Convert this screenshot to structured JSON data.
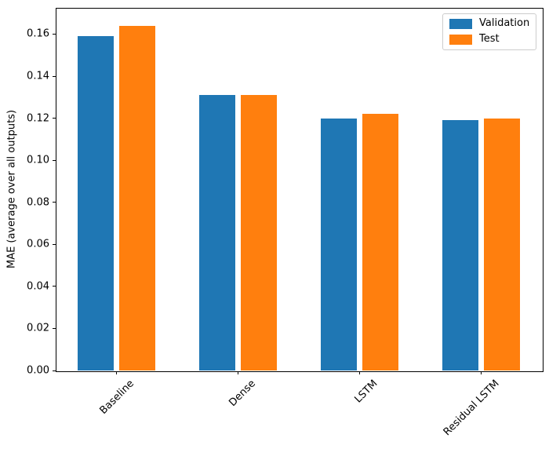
{
  "figure": {
    "background": "#ffffff",
    "text_color": "#000000",
    "spine_color": "#000000",
    "legend_border_color": "#cccccc"
  },
  "chart_data": {
    "type": "bar",
    "title": "",
    "xlabel": "",
    "ylabel": "MAE (average over all outputs)",
    "categories": [
      "Baseline",
      "Dense",
      "LSTM",
      "Residual LSTM"
    ],
    "series": [
      {
        "name": "Validation",
        "color": "#1f77b4",
        "values": [
          0.159,
          0.131,
          0.12,
          0.119
        ]
      },
      {
        "name": "Test",
        "color": "#ff7f0e",
        "values": [
          0.164,
          0.131,
          0.122,
          0.12
        ]
      }
    ],
    "ylim": [
      0,
      0.1725
    ],
    "xlim": [
      -0.5,
      3.5
    ],
    "yticks": [
      0.0,
      0.02,
      0.04,
      0.06,
      0.08,
      0.1,
      0.12,
      0.14,
      0.16
    ],
    "ytick_format_decimals": 2,
    "xtick_rotation_deg": 45,
    "grid": false,
    "legend_position": "upper right",
    "bar_width_units": 0.3,
    "bar_offset_units": 0.17
  }
}
